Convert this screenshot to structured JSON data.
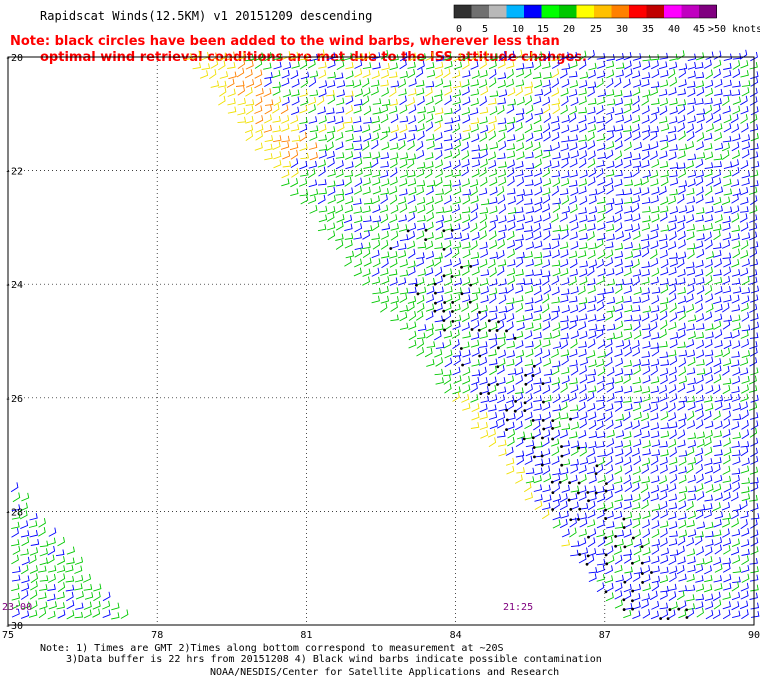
{
  "header": {
    "title": "Rapidscat Winds(12.5KM) v1 20151209 descending",
    "note_line1": "Note: black circles have been added to the wind barbs, wherever less than",
    "note_line2": "optimal wind retrieval conditions are met due to the ISS attitude changes."
  },
  "legend": {
    "labels": [
      "0",
      "5",
      "10",
      "15",
      "20",
      "25",
      "30",
      "35",
      "40",
      "45",
      ">50 knots"
    ],
    "colors": [
      "#303030",
      "#707070",
      "#b8b8b8",
      "#00b4ff",
      "#0000ff",
      "#00ff00",
      "#00c800",
      "#ffff00",
      "#ffc000",
      "#ff8000",
      "#ff0000",
      "#c00000",
      "#ff00ff",
      "#c000c0",
      "#800080"
    ]
  },
  "map": {
    "lon_ticks": [
      "75",
      "78",
      "81",
      "84",
      "87",
      "90"
    ],
    "lat_ticks": [
      "-20",
      "-22",
      "-24",
      "-26",
      "-28",
      "-30"
    ],
    "time_labels": [
      "23:00",
      "21:25"
    ],
    "barb_colors": {
      "green": "#00c800",
      "blue": "#0000ff",
      "yellow": "#f0e000",
      "orange": "#ff8000",
      "black": "#000000"
    }
  },
  "footer": {
    "line1": "Note: 1) Times are GMT 2)Times along bottom correspond to measurement at ~20S",
    "line2": "3)Data buffer is 22 hrs from 20151208 4) Black wind barbs indicate possible contamination",
    "credit": "NOAA/NESDIS/Center for Satellite Applications and Research"
  }
}
